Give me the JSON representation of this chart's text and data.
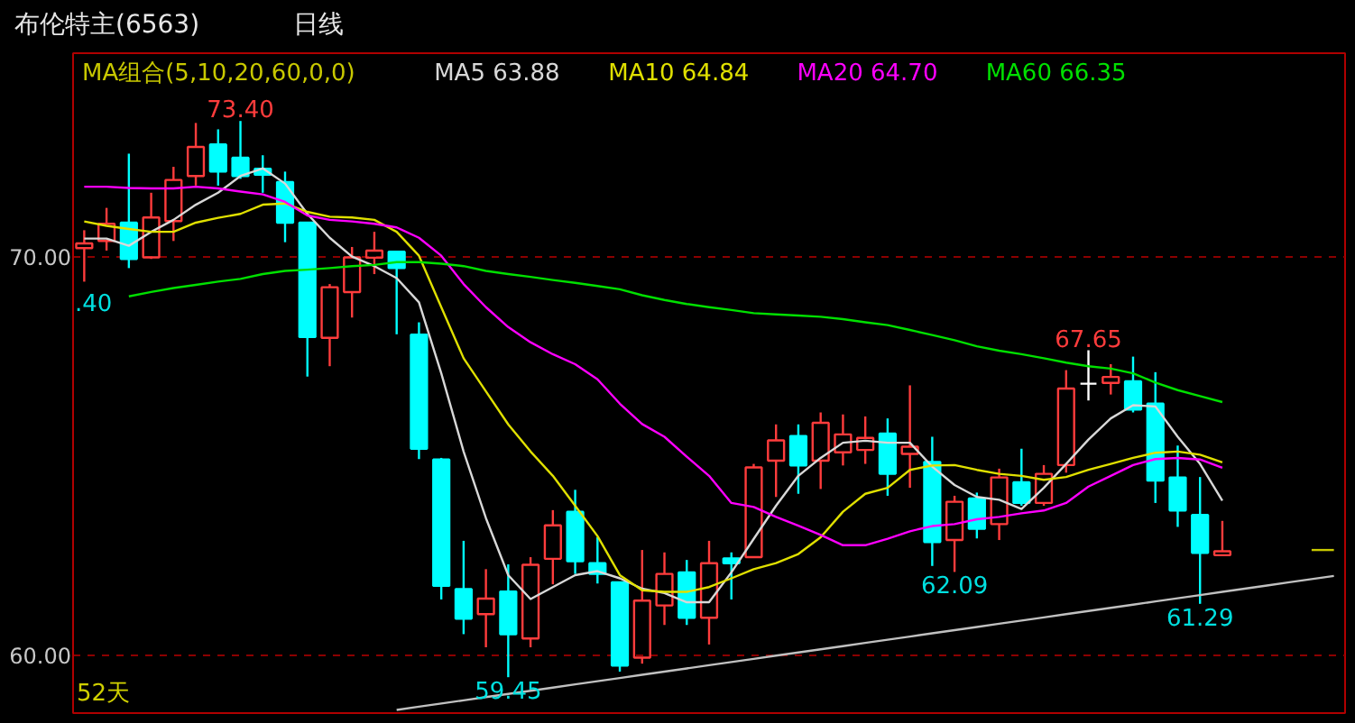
{
  "chart_data": {
    "type": "candlestick",
    "title": "布伦特主(6563)",
    "subtitle": "日线",
    "categories": [
      null,
      null,
      null,
      null,
      null,
      null,
      null,
      null,
      null,
      null,
      null,
      null,
      null,
      null,
      null,
      null,
      null,
      null,
      null,
      null,
      null,
      null,
      null,
      null,
      null,
      null,
      null,
      null,
      null,
      null,
      null,
      null,
      null,
      null,
      null,
      null,
      null,
      null,
      null,
      null,
      null,
      null,
      null,
      null,
      null,
      null,
      null,
      null,
      null,
      null,
      null,
      null,
      null,
      null,
      null,
      null,
      null
    ],
    "ohlc": [
      [
        70.21,
        70.66,
        69.37,
        70.33
      ],
      [
        70.39,
        71.22,
        70.15,
        70.82
      ],
      [
        70.85,
        72.58,
        69.71,
        69.94
      ],
      [
        69.98,
        71.6,
        69.94,
        70.98
      ],
      [
        70.89,
        72.25,
        70.39,
        71.92
      ],
      [
        72.02,
        73.35,
        71.78,
        72.75
      ],
      [
        72.81,
        73.19,
        71.78,
        72.13
      ],
      [
        72.48,
        73.4,
        71.95,
        72.02
      ],
      [
        72.2,
        72.54,
        71.6,
        72.05
      ],
      [
        71.87,
        72.13,
        70.36,
        70.85
      ],
      [
        70.85,
        70.85,
        66.99,
        67.98
      ],
      [
        67.96,
        69.31,
        67.25,
        69.23
      ],
      [
        69.11,
        70.24,
        68.47,
        69.98
      ],
      [
        69.97,
        70.62,
        69.56,
        70.15
      ],
      [
        70.12,
        70.12,
        68.05,
        69.71
      ],
      [
        68.04,
        68.35,
        64.92,
        65.18
      ],
      [
        64.91,
        64.95,
        61.4,
        61.74
      ],
      [
        61.66,
        62.87,
        60.53,
        60.92
      ],
      [
        61.03,
        62.16,
        60.2,
        61.42
      ],
      [
        61.6,
        62.28,
        59.45,
        60.53
      ],
      [
        60.42,
        62.46,
        60.2,
        62.27
      ],
      [
        62.42,
        63.64,
        61.78,
        63.26
      ],
      [
        63.6,
        64.15,
        62.04,
        62.36
      ],
      [
        62.31,
        62.96,
        61.8,
        62.04
      ],
      [
        61.83,
        61.85,
        59.59,
        59.74
      ],
      [
        59.94,
        62.64,
        59.79,
        61.37
      ],
      [
        61.25,
        62.58,
        60.76,
        62.04
      ],
      [
        62.08,
        62.39,
        60.76,
        60.94
      ],
      [
        60.94,
        62.87,
        60.27,
        62.31
      ],
      [
        62.43,
        62.58,
        61.4,
        62.31
      ],
      [
        62.46,
        64.8,
        62.46,
        64.71
      ],
      [
        64.88,
        65.79,
        63.97,
        65.39
      ],
      [
        65.5,
        65.79,
        64.05,
        64.76
      ],
      [
        64.88,
        66.09,
        64.17,
        65.83
      ],
      [
        65.09,
        66.04,
        64.76,
        65.54
      ],
      [
        65.15,
        65.99,
        64.8,
        65.45
      ],
      [
        65.56,
        65.94,
        64.0,
        64.55
      ],
      [
        65.05,
        66.77,
        64.2,
        65.23
      ],
      [
        64.85,
        65.48,
        62.24,
        62.84
      ],
      [
        62.89,
        64.0,
        62.09,
        63.85
      ],
      [
        63.93,
        64.08,
        62.93,
        63.17
      ],
      [
        63.29,
        64.68,
        62.89,
        64.46
      ],
      [
        64.34,
        65.18,
        63.75,
        63.82
      ],
      [
        63.82,
        64.77,
        63.75,
        64.55
      ],
      [
        64.77,
        67.15,
        64.58,
        66.69
      ],
      [
        66.81,
        67.65,
        66.39,
        66.81
      ],
      [
        66.83,
        67.3,
        66.54,
        66.98
      ],
      [
        66.87,
        67.49,
        66.09,
        66.16
      ],
      [
        66.31,
        67.1,
        63.82,
        64.38
      ],
      [
        64.46,
        65.26,
        63.22,
        63.63
      ],
      [
        63.52,
        64.47,
        61.29,
        62.57
      ],
      [
        62.51,
        63.37,
        62.51,
        62.61
      ],
      null,
      null,
      null,
      null,
      null
    ],
    "colors": [
      "#ff3c3c",
      "#ff3c3c",
      "#00ffff",
      "#ff3c3c",
      "#ff3c3c",
      "#ff3c3c",
      "#00ffff",
      "#00ffff",
      "#00ffff",
      "#00ffff",
      "#00ffff",
      "#ff3c3c",
      "#ff3c3c",
      "#ff3c3c",
      "#00ffff",
      "#00ffff",
      "#00ffff",
      "#00ffff",
      "#ff3c3c",
      "#00ffff",
      "#ff3c3c",
      "#ff3c3c",
      "#00ffff",
      "#00ffff",
      "#00ffff",
      "#ff3c3c",
      "#ff3c3c",
      "#00ffff",
      "#ff3c3c",
      "#00ffff",
      "#ff3c3c",
      "#ff3c3c",
      "#00ffff",
      "#ff3c3c",
      "#ff3c3c",
      "#ff3c3c",
      "#00ffff",
      "#ff3c3c",
      "#00ffff",
      "#ff3c3c",
      "#00ffff",
      "#ff3c3c",
      "#00ffff",
      "#ff3c3c",
      "#ff3c3c",
      "#ffffff",
      "#ff3c3c",
      "#00ffff",
      "#00ffff",
      "#00ffff",
      "#00ffff",
      "#ff3c3c",
      null,
      null,
      null,
      null,
      null
    ],
    "legend_title": "MA组合(5,10,20,60,0,0)",
    "series": [
      {
        "name": "MA5 63.88",
        "type": "line",
        "color": "#d8d8d8",
        "values": [
          70.45,
          70.45,
          70.27,
          70.62,
          70.92,
          71.3,
          71.6,
          72.02,
          72.21,
          71.83,
          71.07,
          70.47,
          70.0,
          69.76,
          69.46,
          68.85,
          67.07,
          65.11,
          63.44,
          62.01,
          61.41,
          61.71,
          62.01,
          62.11,
          61.93,
          61.67,
          61.56,
          61.33,
          61.33,
          62.08,
          62.92,
          63.75,
          64.5,
          64.95,
          65.33,
          65.38,
          65.33,
          65.33,
          64.73,
          64.27,
          63.97,
          63.9,
          63.67,
          64.2,
          64.8,
          65.41,
          65.94,
          66.27,
          66.24,
          65.48,
          64.8,
          63.88,
          null,
          null,
          null,
          null,
          null
        ]
      },
      {
        "name": "MA10 64.84",
        "type": "line",
        "color": "#e0e000",
        "values": [
          70.88,
          70.77,
          70.69,
          70.62,
          70.62,
          70.85,
          70.97,
          71.07,
          71.3,
          71.33,
          71.12,
          71.0,
          70.98,
          70.92,
          70.62,
          70.02,
          68.73,
          67.45,
          66.62,
          65.79,
          65.11,
          64.5,
          63.75,
          62.99,
          62.01,
          61.63,
          61.59,
          61.59,
          61.71,
          61.93,
          62.16,
          62.31,
          62.54,
          62.96,
          63.6,
          64.05,
          64.2,
          64.65,
          64.76,
          64.77,
          64.65,
          64.55,
          64.5,
          64.4,
          64.47,
          64.65,
          64.8,
          64.95,
          65.08,
          65.11,
          65.03,
          64.84,
          null,
          null,
          null,
          null,
          null
        ]
      },
      {
        "name": "MA20 64.70",
        "type": "line",
        "color": "#ff00ff",
        "values": [
          71.75,
          71.75,
          71.72,
          71.71,
          71.71,
          71.75,
          71.71,
          71.63,
          71.56,
          71.37,
          71.03,
          70.92,
          70.88,
          70.82,
          70.73,
          70.47,
          70.02,
          69.31,
          68.73,
          68.23,
          67.85,
          67.55,
          67.3,
          66.92,
          66.31,
          65.8,
          65.48,
          64.98,
          64.5,
          63.82,
          63.72,
          63.47,
          63.25,
          63.02,
          62.76,
          62.76,
          62.92,
          63.11,
          63.24,
          63.29,
          63.41,
          63.47,
          63.56,
          63.63,
          63.82,
          64.23,
          64.5,
          64.77,
          64.92,
          64.95,
          64.91,
          64.7,
          null,
          null,
          null,
          null,
          null
        ]
      },
      {
        "name": "MA60 66.35",
        "type": "line",
        "color": "#00e000",
        "values": [
          null,
          null,
          69.0,
          69.11,
          69.21,
          69.29,
          69.37,
          69.44,
          69.56,
          69.64,
          69.67,
          69.71,
          69.76,
          69.79,
          69.86,
          69.86,
          69.82,
          69.76,
          69.64,
          69.56,
          69.49,
          69.41,
          69.34,
          69.26,
          69.18,
          69.03,
          68.91,
          68.81,
          68.73,
          68.66,
          68.58,
          68.55,
          68.52,
          68.49,
          68.43,
          68.35,
          68.28,
          68.16,
          68.03,
          67.9,
          67.75,
          67.64,
          67.55,
          67.45,
          67.34,
          67.25,
          67.19,
          67.07,
          66.84,
          66.65,
          66.5,
          66.35,
          null,
          null,
          null,
          null,
          null
        ]
      },
      {
        "type": "line",
        "color": "#c0c0c0",
        "values": [
          null,
          null,
          null,
          null,
          null,
          null,
          null,
          null,
          null,
          null,
          null,
          null,
          null,
          null,
          58.63,
          58.71,
          58.79,
          58.87,
          58.95,
          59.03,
          59.11,
          59.19,
          59.27,
          59.35,
          59.43,
          59.51,
          59.59,
          59.67,
          59.75,
          59.83,
          59.91,
          59.99,
          60.07,
          60.15,
          60.23,
          60.31,
          60.39,
          60.47,
          60.55,
          60.63,
          60.71,
          60.79,
          60.87,
          60.95,
          61.03,
          61.11,
          61.19,
          61.27,
          61.35,
          61.43,
          61.51,
          61.59,
          61.67,
          61.75,
          61.83,
          61.91,
          61.99
        ]
      },
      {
        "type": "line",
        "color": "#c8c800",
        "values": [
          null,
          null,
          null,
          null,
          null,
          null,
          null,
          null,
          null,
          null,
          null,
          null,
          null,
          null,
          null,
          null,
          null,
          null,
          null,
          null,
          null,
          null,
          null,
          null,
          null,
          null,
          null,
          null,
          null,
          null,
          null,
          null,
          null,
          null,
          null,
          null,
          null,
          null,
          null,
          null,
          null,
          null,
          null,
          null,
          null,
          null,
          null,
          null,
          null,
          null,
          null,
          null,
          null,
          null,
          null,
          62.64,
          62.64
        ]
      }
    ],
    "ylim": [
      58.55,
      75.1
    ],
    "yticks": [
      {
        "value": 60,
        "label": "60.00"
      },
      {
        "value": 70,
        "label": "70.00"
      }
    ],
    "grid": "y",
    "legend": "top",
    "tick_labels": "y",
    "annotations": [
      {
        "text": "73.40",
        "y": 73.4
      },
      {
        "text": "67.65",
        "y": 67.65
      },
      {
        "text": "59.45",
        "y": 59.45
      },
      {
        "text": "62.09",
        "y": 62.09
      },
      {
        "text": "61.29",
        "y": 61.29
      },
      ".40",
      "52天"
    ]
  }
}
